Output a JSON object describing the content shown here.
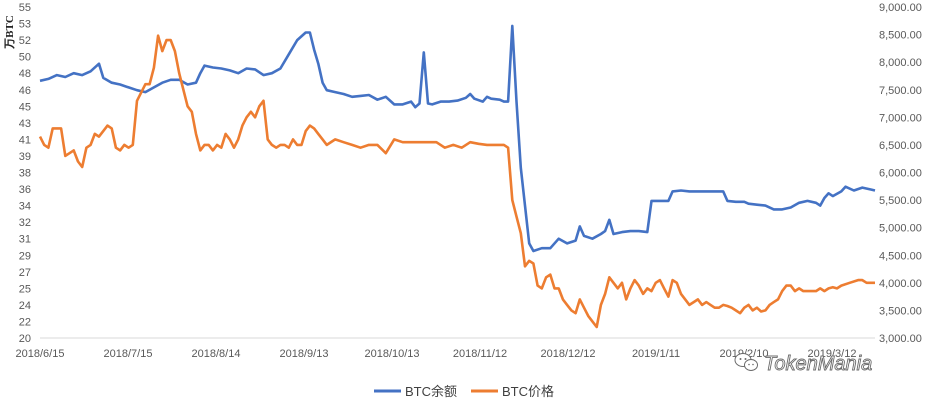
{
  "chart_data": {
    "type": "line",
    "y_left_label": "万BTC",
    "y_left_ticks": [
      "20",
      "22",
      "24",
      "25",
      "27",
      "29",
      "31",
      "32",
      "34",
      "36",
      "38",
      "39",
      "41",
      "43",
      "45",
      "46",
      "48",
      "50",
      "52",
      "53",
      "55"
    ],
    "y_left_range": [
      20,
      55
    ],
    "y_right_ticks": [
      "3,000.00",
      "3,500.00",
      "4,000.00",
      "4,500.00",
      "5,000.00",
      "5,500.00",
      "6,000.00",
      "6,500.00",
      "7,000.00",
      "7,500.00",
      "8,000.00",
      "8,500.00",
      "9,000.00"
    ],
    "y_right_range": [
      3000,
      9000
    ],
    "x_ticks": [
      "2018/6/15",
      "2018/7/15",
      "2018/8/14",
      "2018/9/13",
      "2018/10/13",
      "2018/11/12",
      "2018/12/12",
      "2019/1/11",
      "2019/2/10",
      "2019/3/12"
    ],
    "grid": false,
    "legend_position": "bottom",
    "series": [
      {
        "name": "BTC余额",
        "axis": "left",
        "color": "#4472c4",
        "points": [
          [
            0,
            47.2
          ],
          [
            2,
            47.4
          ],
          [
            4,
            47.8
          ],
          [
            6,
            47.6
          ],
          [
            8,
            48.0
          ],
          [
            10,
            47.8
          ],
          [
            12,
            48.2
          ],
          [
            14,
            49.0
          ],
          [
            15,
            47.5
          ],
          [
            17,
            47.0
          ],
          [
            19,
            46.8
          ],
          [
            21,
            46.5
          ],
          [
            23,
            46.2
          ],
          [
            25,
            46.0
          ],
          [
            27,
            46.5
          ],
          [
            29,
            47.0
          ],
          [
            31,
            47.3
          ],
          [
            33,
            47.3
          ],
          [
            35,
            46.8
          ],
          [
            37,
            47.0
          ],
          [
            38,
            48.0
          ],
          [
            39,
            48.8
          ],
          [
            41,
            48.6
          ],
          [
            43,
            48.5
          ],
          [
            45,
            48.3
          ],
          [
            47,
            48.0
          ],
          [
            49,
            48.5
          ],
          [
            51,
            48.4
          ],
          [
            53,
            47.8
          ],
          [
            55,
            48.0
          ],
          [
            57,
            48.5
          ],
          [
            59,
            50.0
          ],
          [
            61,
            51.5
          ],
          [
            63,
            52.3
          ],
          [
            64,
            52.3
          ],
          [
            65,
            50.5
          ],
          [
            66,
            49.0
          ],
          [
            67,
            47.0
          ],
          [
            68,
            46.2
          ],
          [
            70,
            46.0
          ],
          [
            72,
            45.8
          ],
          [
            74,
            45.5
          ],
          [
            76,
            45.6
          ],
          [
            78,
            45.7
          ],
          [
            80,
            45.2
          ],
          [
            82,
            45.5
          ],
          [
            84,
            44.7
          ],
          [
            86,
            44.7
          ],
          [
            88,
            45.0
          ],
          [
            89,
            44.4
          ],
          [
            90,
            44.8
          ],
          [
            91,
            50.2
          ],
          [
            92,
            44.8
          ],
          [
            93,
            44.7
          ],
          [
            95,
            45.0
          ],
          [
            97,
            45.0
          ],
          [
            99,
            45.1
          ],
          [
            101,
            45.4
          ],
          [
            102,
            45.8
          ],
          [
            103,
            45.3
          ],
          [
            105,
            45.0
          ],
          [
            106,
            45.5
          ],
          [
            107,
            45.3
          ],
          [
            109,
            45.2
          ],
          [
            110,
            45.0
          ],
          [
            111,
            45.0
          ],
          [
            112,
            53.0
          ],
          [
            113,
            45.0
          ],
          [
            114,
            38.0
          ],
          [
            115,
            34.0
          ],
          [
            116,
            30.0
          ],
          [
            117,
            29.2
          ],
          [
            119,
            29.5
          ],
          [
            121,
            29.5
          ],
          [
            123,
            30.5
          ],
          [
            125,
            30.0
          ],
          [
            127,
            30.3
          ],
          [
            128,
            31.8
          ],
          [
            129,
            30.8
          ],
          [
            131,
            30.5
          ],
          [
            133,
            31.0
          ],
          [
            134,
            31.3
          ],
          [
            135,
            32.5
          ],
          [
            136,
            31.0
          ],
          [
            138,
            31.2
          ],
          [
            140,
            31.3
          ],
          [
            142,
            31.3
          ],
          [
            144,
            31.2
          ],
          [
            145,
            34.5
          ],
          [
            147,
            34.5
          ],
          [
            149,
            34.5
          ],
          [
            150,
            35.5
          ],
          [
            152,
            35.6
          ],
          [
            154,
            35.5
          ],
          [
            156,
            35.5
          ],
          [
            158,
            35.5
          ],
          [
            160,
            35.5
          ],
          [
            162,
            35.5
          ],
          [
            163,
            34.5
          ],
          [
            165,
            34.4
          ],
          [
            167,
            34.4
          ],
          [
            168,
            34.2
          ],
          [
            170,
            34.1
          ],
          [
            172,
            34.0
          ],
          [
            174,
            33.6
          ],
          [
            176,
            33.6
          ],
          [
            178,
            33.8
          ],
          [
            180,
            34.3
          ],
          [
            182,
            34.5
          ],
          [
            184,
            34.3
          ],
          [
            185,
            34.0
          ],
          [
            186,
            34.8
          ],
          [
            187,
            35.3
          ],
          [
            188,
            35.0
          ],
          [
            190,
            35.5
          ],
          [
            191,
            36.0
          ],
          [
            193,
            35.6
          ],
          [
            195,
            35.9
          ],
          [
            197,
            35.7
          ],
          [
            198,
            35.6
          ]
        ]
      },
      {
        "name": "BTC价格",
        "axis": "right",
        "color": "#ed7d31",
        "points": [
          [
            0,
            6650
          ],
          [
            1,
            6500
          ],
          [
            2,
            6450
          ],
          [
            3,
            6800
          ],
          [
            5,
            6800
          ],
          [
            6,
            6300
          ],
          [
            7,
            6350
          ],
          [
            8,
            6400
          ],
          [
            9,
            6200
          ],
          [
            10,
            6100
          ],
          [
            11,
            6450
          ],
          [
            12,
            6500
          ],
          [
            13,
            6700
          ],
          [
            14,
            6650
          ],
          [
            16,
            6850
          ],
          [
            17,
            6800
          ],
          [
            18,
            6450
          ],
          [
            19,
            6400
          ],
          [
            20,
            6500
          ],
          [
            21,
            6450
          ],
          [
            22,
            6500
          ],
          [
            23,
            7300
          ],
          [
            25,
            7600
          ],
          [
            26,
            7600
          ],
          [
            27,
            7900
          ],
          [
            28,
            8480
          ],
          [
            29,
            8200
          ],
          [
            30,
            8400
          ],
          [
            31,
            8400
          ],
          [
            32,
            8200
          ],
          [
            33,
            7800
          ],
          [
            34,
            7500
          ],
          [
            35,
            7200
          ],
          [
            36,
            7100
          ],
          [
            37,
            6700
          ],
          [
            38,
            6400
          ],
          [
            39,
            6500
          ],
          [
            40,
            6500
          ],
          [
            41,
            6400
          ],
          [
            42,
            6500
          ],
          [
            43,
            6450
          ],
          [
            44,
            6700
          ],
          [
            45,
            6600
          ],
          [
            46,
            6450
          ],
          [
            47,
            6600
          ],
          [
            48,
            6850
          ],
          [
            49,
            7000
          ],
          [
            50,
            7100
          ],
          [
            51,
            7000
          ],
          [
            52,
            7200
          ],
          [
            53,
            7300
          ],
          [
            54,
            6600
          ],
          [
            55,
            6500
          ],
          [
            56,
            6450
          ],
          [
            57,
            6500
          ],
          [
            58,
            6500
          ],
          [
            59,
            6450
          ],
          [
            60,
            6600
          ],
          [
            61,
            6500
          ],
          [
            62,
            6500
          ],
          [
            63,
            6750
          ],
          [
            64,
            6850
          ],
          [
            65,
            6800
          ],
          [
            66,
            6700
          ],
          [
            67,
            6600
          ],
          [
            68,
            6500
          ],
          [
            70,
            6600
          ],
          [
            72,
            6550
          ],
          [
            74,
            6500
          ],
          [
            76,
            6450
          ],
          [
            78,
            6500
          ],
          [
            80,
            6500
          ],
          [
            82,
            6350
          ],
          [
            84,
            6600
          ],
          [
            86,
            6550
          ],
          [
            88,
            6550
          ],
          [
            90,
            6550
          ],
          [
            92,
            6550
          ],
          [
            94,
            6550
          ],
          [
            96,
            6450
          ],
          [
            98,
            6500
          ],
          [
            100,
            6450
          ],
          [
            102,
            6550
          ],
          [
            104,
            6520
          ],
          [
            106,
            6500
          ],
          [
            108,
            6500
          ],
          [
            109,
            6500
          ],
          [
            110,
            6500
          ],
          [
            111,
            6450
          ],
          [
            112,
            5500
          ],
          [
            113,
            5200
          ],
          [
            114,
            4900
          ],
          [
            115,
            4300
          ],
          [
            116,
            4400
          ],
          [
            117,
            4350
          ],
          [
            118,
            3950
          ],
          [
            119,
            3900
          ],
          [
            120,
            4100
          ],
          [
            121,
            4150
          ],
          [
            122,
            3900
          ],
          [
            123,
            3900
          ],
          [
            124,
            3700
          ],
          [
            125,
            3600
          ],
          [
            126,
            3500
          ],
          [
            127,
            3450
          ],
          [
            128,
            3700
          ],
          [
            129,
            3550
          ],
          [
            130,
            3400
          ],
          [
            131,
            3300
          ],
          [
            132,
            3200
          ],
          [
            133,
            3600
          ],
          [
            134,
            3800
          ],
          [
            135,
            4100
          ],
          [
            136,
            4000
          ],
          [
            137,
            3900
          ],
          [
            138,
            4000
          ],
          [
            139,
            3700
          ],
          [
            140,
            3900
          ],
          [
            141,
            4050
          ],
          [
            142,
            3950
          ],
          [
            143,
            3800
          ],
          [
            144,
            3900
          ],
          [
            145,
            3850
          ],
          [
            146,
            4000
          ],
          [
            147,
            4050
          ],
          [
            148,
            3900
          ],
          [
            149,
            3750
          ],
          [
            150,
            4050
          ],
          [
            151,
            4000
          ],
          [
            152,
            3800
          ],
          [
            153,
            3700
          ],
          [
            154,
            3600
          ],
          [
            155,
            3650
          ],
          [
            156,
            3700
          ],
          [
            157,
            3600
          ],
          [
            158,
            3650
          ],
          [
            159,
            3600
          ],
          [
            160,
            3550
          ],
          [
            161,
            3550
          ],
          [
            162,
            3600
          ],
          [
            163,
            3580
          ],
          [
            164,
            3550
          ],
          [
            165,
            3500
          ],
          [
            166,
            3450
          ],
          [
            167,
            3550
          ],
          [
            168,
            3600
          ],
          [
            169,
            3500
          ],
          [
            170,
            3550
          ],
          [
            171,
            3480
          ],
          [
            172,
            3500
          ],
          [
            173,
            3600
          ],
          [
            174,
            3650
          ],
          [
            175,
            3700
          ],
          [
            176,
            3850
          ],
          [
            177,
            3950
          ],
          [
            178,
            3950
          ],
          [
            179,
            3850
          ],
          [
            180,
            3900
          ],
          [
            181,
            3850
          ],
          [
            182,
            3850
          ],
          [
            183,
            3850
          ],
          [
            184,
            3850
          ],
          [
            185,
            3900
          ],
          [
            186,
            3850
          ],
          [
            187,
            3900
          ],
          [
            188,
            3920
          ],
          [
            189,
            3900
          ],
          [
            190,
            3950
          ],
          [
            192,
            4000
          ],
          [
            194,
            4050
          ],
          [
            195,
            4050
          ],
          [
            196,
            4000
          ],
          [
            197,
            4000
          ],
          [
            198,
            4000
          ]
        ]
      }
    ]
  },
  "watermark": {
    "icon": "wechat-icon",
    "text": "TokenMania"
  }
}
